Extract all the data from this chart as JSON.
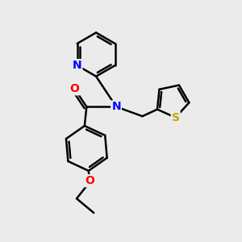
{
  "background_color": "#ebebeb",
  "atom_colors": {
    "N": "#0000ff",
    "O": "#ff0000",
    "S": "#bbaa00",
    "C": "#000000"
  },
  "bond_color": "#000000",
  "bond_width": 1.8,
  "figsize": [
    3.0,
    3.0
  ],
  "dpi": 100
}
